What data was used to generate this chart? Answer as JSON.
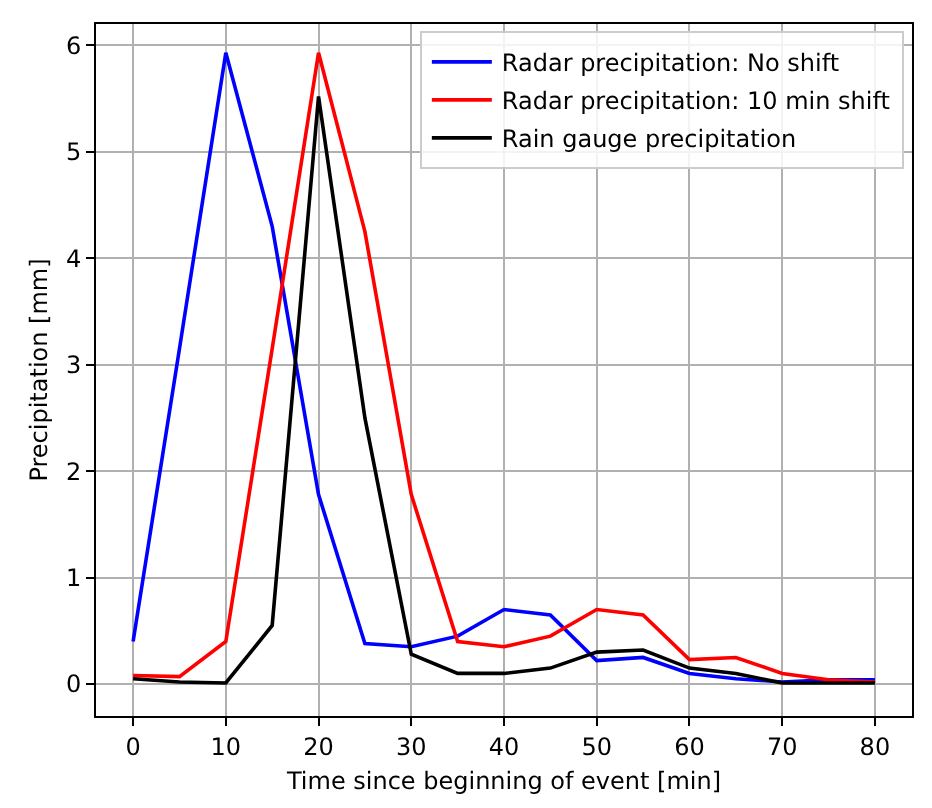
{
  "chart_data": {
    "type": "line",
    "xlabel": "Time since beginning of event [min]",
    "ylabel": "Precipitation [mm]",
    "x": [
      0,
      5,
      10,
      15,
      20,
      25,
      30,
      35,
      40,
      45,
      50,
      55,
      60,
      65,
      70,
      75,
      80
    ],
    "series": [
      {
        "name": "Radar precipitation: No shift",
        "color": "#0000ff",
        "values": [
          0.4,
          3.15,
          5.93,
          4.3,
          1.78,
          0.38,
          0.35,
          0.45,
          0.7,
          0.65,
          0.22,
          0.25,
          0.1,
          0.05,
          0.02,
          0.04,
          0.04
        ]
      },
      {
        "name": "Radar precipitation: 10 min shift",
        "color": "#ff0000",
        "values": [
          0.08,
          0.07,
          0.4,
          3.15,
          5.93,
          4.25,
          1.78,
          0.4,
          0.35,
          0.45,
          0.7,
          0.65,
          0.23,
          0.25,
          0.1,
          0.04,
          0.02
        ]
      },
      {
        "name": "Rain gauge precipitation",
        "color": "#000000",
        "values": [
          0.05,
          0.02,
          0.01,
          0.55,
          5.52,
          2.5,
          0.28,
          0.1,
          0.1,
          0.15,
          0.3,
          0.32,
          0.15,
          0.1,
          0.01,
          0.01,
          0.01
        ]
      }
    ],
    "xlim": [
      -4,
      84
    ],
    "xticks": [
      0,
      10,
      20,
      30,
      40,
      50,
      60,
      70,
      80
    ],
    "ylim": [
      -0.3,
      6.2
    ],
    "yticks": [
      0,
      1,
      2,
      3,
      4,
      5,
      6
    ],
    "grid": true,
    "legend": "top right",
    "marker": "none",
    "line_style": "solid"
  }
}
